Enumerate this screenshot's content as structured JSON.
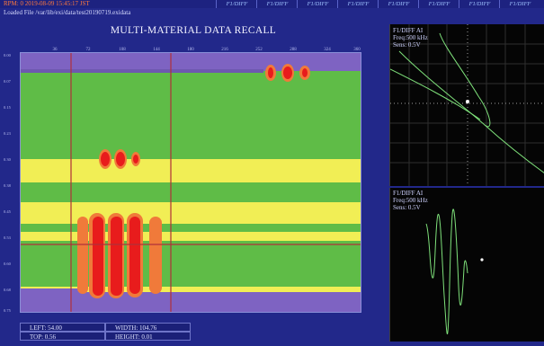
{
  "status_line": "RPM: 0 2019-08-09 15:45:17 JST",
  "tabs": [
    "F1/DIFF",
    "F1/DIFF",
    "F1/DIFF",
    "F1/DIFF",
    "F1/DIFF",
    "F1/DIFF",
    "F1/DIFF",
    "F1/DIFF"
  ],
  "loaded_file": "Loaded File /var/lib/exi/data/test20190719.exidata",
  "title": "MULTI-MATERIAL DATA RECALL",
  "top_ticks": [
    "36",
    "72",
    "108",
    "144",
    "180",
    "216",
    "252",
    "288",
    "324",
    "360"
  ],
  "left_ticks": [
    "0.00",
    "0.07",
    "0.15",
    "0.23",
    "0.30",
    "0.38",
    "0.45",
    "0.53",
    "0.60",
    "0.68",
    "0.75"
  ],
  "colors": {
    "background": "#22288a",
    "scan_green": "#5fbc47",
    "band_yellow": "#f1ee55",
    "band_purple": "#7e63c2",
    "flaw_orange": "#f07a3a",
    "flaw_red": "#e81c1c",
    "cursor_line": "#b0303a",
    "trace_green": "#7ee07a"
  },
  "scope_top": {
    "label": "F1/DIFF AI",
    "freq": "Freq:500 kHz",
    "sens": "Sens: 0.5V"
  },
  "scope_bottom": {
    "label": "F1/DIFF AI",
    "freq": "Freq:500 kHz",
    "sens": "Sens: 0.5V"
  },
  "readouts": {
    "left": "LEFT: 54.00",
    "top": "TOP: 0.56",
    "width": "WIDTH: 104.76",
    "height": "HEIGHT: 0.01"
  }
}
